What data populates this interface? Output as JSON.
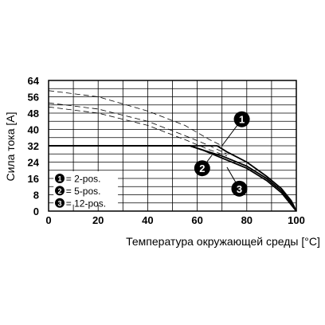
{
  "chart_data": {
    "type": "line",
    "title": "",
    "xlabel": "Температура окружающей среды [°C]",
    "ylabel": "Сила тока [A]",
    "xlim": [
      0,
      100
    ],
    "ylim": [
      0,
      64
    ],
    "xticks": [
      0,
      20,
      40,
      60,
      80,
      100
    ],
    "yticks": [
      0,
      8,
      16,
      24,
      32,
      40,
      48,
      56,
      64
    ],
    "grid": true,
    "legend_position": "lower-left",
    "legend": [
      {
        "marker": "1",
        "text": "= 2-pos."
      },
      {
        "marker": "2",
        "text": "= 5-pos."
      },
      {
        "marker": "3",
        "text": "= 12-pos."
      }
    ],
    "callouts": [
      "1",
      "2",
      "3"
    ],
    "series": [
      {
        "marker": "1",
        "style": "solid",
        "points": [
          [
            0,
            32
          ],
          [
            68,
            32
          ],
          [
            72,
            29
          ],
          [
            80,
            24
          ],
          [
            88,
            17
          ],
          [
            94,
            11
          ],
          [
            98,
            5
          ],
          [
            100,
            0
          ]
        ]
      },
      {
        "marker": "2",
        "style": "solid",
        "points": [
          [
            0,
            32
          ],
          [
            57,
            32
          ],
          [
            62,
            30
          ],
          [
            70,
            27
          ],
          [
            80,
            22
          ],
          [
            88,
            16
          ],
          [
            94,
            10
          ],
          [
            98,
            4
          ],
          [
            100,
            0
          ]
        ]
      },
      {
        "marker": "3",
        "style": "solid",
        "points": [
          [
            0,
            32
          ],
          [
            57,
            32
          ],
          [
            62,
            30
          ],
          [
            70,
            26
          ],
          [
            80,
            21
          ],
          [
            88,
            15
          ],
          [
            94,
            9
          ],
          [
            98,
            3
          ],
          [
            100,
            0
          ]
        ]
      },
      {
        "marker": "1",
        "style": "dashed",
        "points": [
          [
            0,
            59
          ],
          [
            20,
            56
          ],
          [
            40,
            49
          ],
          [
            55,
            42
          ],
          [
            65,
            35
          ],
          [
            70,
            32
          ]
        ]
      },
      {
        "marker": "2",
        "style": "dashed",
        "points": [
          [
            0,
            53
          ],
          [
            20,
            50
          ],
          [
            40,
            44
          ],
          [
            55,
            37
          ],
          [
            65,
            32
          ],
          [
            72,
            28
          ]
        ]
      },
      {
        "marker": "3",
        "style": "dashed",
        "points": [
          [
            0,
            51
          ],
          [
            20,
            48
          ],
          [
            40,
            42
          ],
          [
            55,
            35
          ],
          [
            65,
            30
          ],
          [
            72,
            27
          ]
        ]
      }
    ]
  }
}
